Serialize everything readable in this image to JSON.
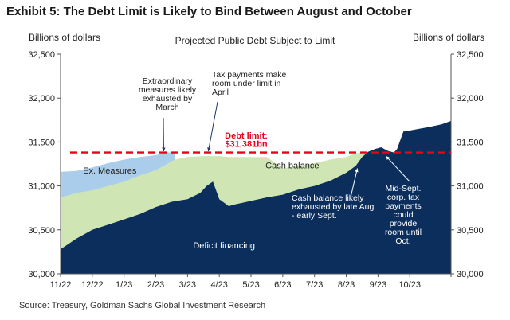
{
  "title": "Exhibit 5: The Debt Limit is Likely to Bind Between August and October",
  "source": "Source: Treasury, Goldman Sachs Global Investment Research",
  "chart_data": {
    "type": "area",
    "title": "Projected Public Debt Subject to Limit",
    "ylabel_left": "Billions of dollars",
    "ylabel_right": "Billions of dollars",
    "ylim": [
      30000,
      32500
    ],
    "yticks": [
      30000,
      30500,
      31000,
      31500,
      32000,
      32500
    ],
    "ytick_labels": [
      "30,000",
      "30,500",
      "31,000",
      "31,500",
      "32,000",
      "32,500"
    ],
    "xlim": [
      0,
      12.3
    ],
    "xtick_positions": [
      0,
      1,
      2,
      3,
      4,
      5,
      6,
      7,
      8,
      9,
      10,
      11
    ],
    "xtick_labels": [
      "11/22",
      "12/22",
      "1/23",
      "2/23",
      "3/23",
      "4/23",
      "5/23",
      "6/23",
      "7/23",
      "8/23",
      "9/23",
      "10/23"
    ],
    "debt_limit": {
      "value": 31381,
      "label": "Debt limit:",
      "value_label": "$31,381bn",
      "color": "#e8001c"
    },
    "series": [
      {
        "name": "Deficit financing",
        "color": "#0b2e5c",
        "x": [
          0,
          0.5,
          1,
          1.5,
          2,
          2.5,
          3,
          3.5,
          4,
          4.4,
          4.6,
          4.8,
          5.0,
          5.3,
          5.5,
          6,
          6.5,
          7,
          7.5,
          8,
          8.5,
          9,
          9.3,
          9.5,
          9.7,
          9.9,
          10.1,
          10.3,
          10.5,
          10.6,
          10.8,
          11,
          11.3,
          11.6,
          12,
          12.3
        ],
        "values": [
          30280,
          30400,
          30500,
          30560,
          30620,
          30680,
          30760,
          30820,
          30850,
          30920,
          31000,
          31050,
          30850,
          30770,
          30790,
          30830,
          30870,
          30900,
          30960,
          31000,
          31060,
          31150,
          31230,
          31330,
          31390,
          31420,
          31440,
          31400,
          31380,
          31420,
          31620,
          31630,
          31650,
          31670,
          31700,
          31740
        ]
      },
      {
        "name": "Cash balance",
        "color": "#cfe6b4",
        "x": [
          0,
          0.5,
          1,
          1.5,
          2,
          2.5,
          3,
          3.3,
          3.6,
          4,
          4.5,
          5,
          5.3,
          5.6,
          6,
          6.5,
          7,
          7.5,
          8,
          8.5,
          9,
          9.3,
          9.5,
          9.7
        ],
        "values": [
          30870,
          30920,
          30950,
          31000,
          31050,
          31120,
          31180,
          31240,
          31300,
          31330,
          31340,
          31340,
          31330,
          31330,
          31330,
          31330,
          31200,
          31230,
          31260,
          31300,
          31330,
          31370,
          31381,
          31390
        ]
      },
      {
        "name": "Ex. Measures",
        "color": "#a9cdea",
        "x": [
          0,
          0.5,
          1,
          1.5,
          2,
          2.5,
          3,
          3.3,
          3.6
        ],
        "values": [
          31160,
          31170,
          31210,
          31260,
          31300,
          31330,
          31350,
          31381,
          31381
        ]
      }
    ],
    "annotations": [
      {
        "lines": [
          "Extraordinary",
          "measures likely",
          "exhausted by",
          "March"
        ]
      },
      {
        "lines": [
          "Tax payments make",
          "room under limit in",
          "April"
        ]
      },
      {
        "lines": [
          "Cash balance likely",
          "exhausted by late Aug.",
          "- early Sept."
        ]
      },
      {
        "lines": [
          "Mid-Sept.",
          "corp. tax",
          "payments",
          "could",
          "provide",
          "room until",
          "Oct."
        ]
      }
    ]
  }
}
